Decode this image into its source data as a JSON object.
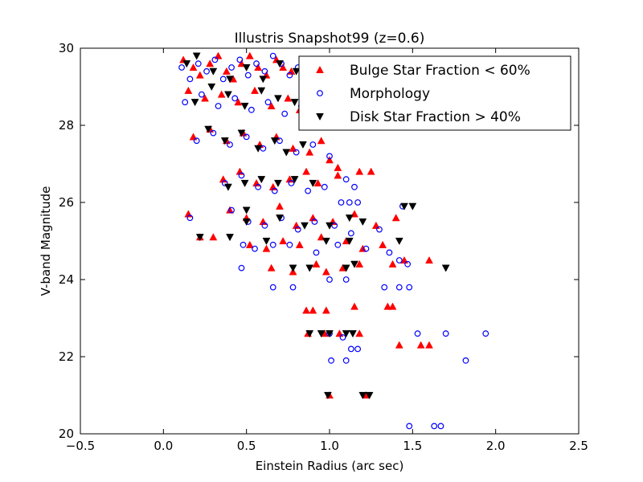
{
  "chart_data": {
    "type": "scatter",
    "title": "Illustris Snapshot99 (z=0.6)",
    "xlabel": "Einstein Radius (arc sec)",
    "ylabel": "V-band Magnitude",
    "xlim": [
      -0.5,
      2.5
    ],
    "ylim": [
      20,
      30
    ],
    "xticks": [
      -0.5,
      0.0,
      0.5,
      1.0,
      1.5,
      2.0,
      2.5
    ],
    "xtick_labels": [
      "−0.5",
      "0.0",
      "0.5",
      "1.0",
      "1.5",
      "2.0",
      "2.5"
    ],
    "yticks": [
      20,
      22,
      24,
      26,
      28,
      30
    ],
    "ytick_labels": [
      "20",
      "22",
      "24",
      "26",
      "28",
      "30"
    ],
    "grid": false,
    "legend_position": "top-right",
    "series": [
      {
        "name": "Bulge Star Fraction < 60%",
        "marker": "triangle-up",
        "color": "#ff0000",
        "points": [
          [
            0.12,
            29.7
          ],
          [
            0.18,
            29.5
          ],
          [
            0.22,
            29.3
          ],
          [
            0.28,
            29.6
          ],
          [
            0.33,
            29.8
          ],
          [
            0.38,
            29.4
          ],
          [
            0.42,
            29.2
          ],
          [
            0.47,
            29.6
          ],
          [
            0.52,
            29.8
          ],
          [
            0.57,
            29.5
          ],
          [
            0.62,
            29.3
          ],
          [
            0.68,
            29.7
          ],
          [
            0.72,
            29.5
          ],
          [
            0.77,
            29.4
          ],
          [
            0.85,
            29.6
          ],
          [
            0.15,
            28.9
          ],
          [
            0.25,
            28.7
          ],
          [
            0.35,
            28.8
          ],
          [
            0.45,
            28.6
          ],
          [
            0.55,
            28.9
          ],
          [
            0.65,
            28.5
          ],
          [
            0.75,
            28.7
          ],
          [
            0.82,
            28.4
          ],
          [
            0.9,
            28.6
          ],
          [
            0.18,
            27.7
          ],
          [
            0.28,
            27.9
          ],
          [
            0.38,
            27.6
          ],
          [
            0.48,
            27.8
          ],
          [
            0.58,
            27.5
          ],
          [
            0.68,
            27.7
          ],
          [
            0.78,
            27.4
          ],
          [
            0.88,
            27.3
          ],
          [
            0.95,
            27.6
          ],
          [
            1.0,
            27.1
          ],
          [
            1.05,
            26.9
          ],
          [
            0.36,
            26.6
          ],
          [
            0.46,
            26.8
          ],
          [
            0.56,
            26.5
          ],
          [
            0.66,
            26.4
          ],
          [
            0.76,
            26.6
          ],
          [
            0.86,
            26.8
          ],
          [
            0.93,
            26.5
          ],
          [
            1.05,
            26.7
          ],
          [
            1.18,
            26.8
          ],
          [
            1.25,
            26.8
          ],
          [
            0.15,
            25.7
          ],
          [
            0.4,
            25.8
          ],
          [
            0.5,
            25.6
          ],
          [
            0.6,
            25.5
          ],
          [
            0.7,
            25.9
          ],
          [
            0.8,
            25.4
          ],
          [
            0.9,
            25.6
          ],
          [
            1.02,
            25.5
          ],
          [
            1.15,
            25.7
          ],
          [
            1.28,
            25.4
          ],
          [
            1.4,
            25.6
          ],
          [
            0.22,
            25.1
          ],
          [
            0.3,
            25.1
          ],
          [
            0.52,
            24.9
          ],
          [
            0.62,
            24.8
          ],
          [
            0.72,
            25.0
          ],
          [
            0.82,
            24.9
          ],
          [
            0.95,
            25.1
          ],
          [
            1.1,
            25.0
          ],
          [
            1.2,
            24.8
          ],
          [
            1.32,
            24.9
          ],
          [
            0.65,
            24.3
          ],
          [
            0.78,
            24.2
          ],
          [
            0.92,
            24.4
          ],
          [
            0.98,
            24.2
          ],
          [
            1.08,
            24.3
          ],
          [
            1.18,
            24.4
          ],
          [
            1.38,
            24.4
          ],
          [
            1.45,
            24.5
          ],
          [
            1.6,
            24.5
          ],
          [
            0.86,
            23.2
          ],
          [
            0.9,
            23.2
          ],
          [
            0.98,
            23.2
          ],
          [
            1.15,
            23.3
          ],
          [
            1.35,
            23.3
          ],
          [
            1.38,
            23.3
          ],
          [
            0.87,
            22.6
          ],
          [
            0.97,
            22.6
          ],
          [
            1.06,
            22.6
          ],
          [
            1.18,
            22.6
          ],
          [
            1.42,
            22.3
          ],
          [
            1.55,
            22.3
          ],
          [
            1.6,
            22.3
          ],
          [
            1.0,
            21.0
          ],
          [
            1.22,
            21.0
          ]
        ]
      },
      {
        "name": "Morphology",
        "marker": "circle-open",
        "color": "#0000ff",
        "points": [
          [
            0.11,
            29.5
          ],
          [
            0.16,
            29.2
          ],
          [
            0.21,
            29.6
          ],
          [
            0.26,
            29.4
          ],
          [
            0.31,
            29.7
          ],
          [
            0.36,
            29.2
          ],
          [
            0.41,
            29.5
          ],
          [
            0.46,
            29.7
          ],
          [
            0.51,
            29.3
          ],
          [
            0.56,
            29.6
          ],
          [
            0.61,
            29.4
          ],
          [
            0.66,
            29.8
          ],
          [
            0.71,
            29.6
          ],
          [
            0.76,
            29.3
          ],
          [
            0.81,
            29.5
          ],
          [
            0.13,
            28.6
          ],
          [
            0.23,
            28.8
          ],
          [
            0.33,
            28.5
          ],
          [
            0.43,
            28.7
          ],
          [
            0.53,
            28.4
          ],
          [
            0.63,
            28.6
          ],
          [
            0.73,
            28.3
          ],
          [
            0.83,
            28.5
          ],
          [
            0.93,
            28.2
          ],
          [
            0.2,
            27.6
          ],
          [
            0.3,
            27.8
          ],
          [
            0.4,
            27.5
          ],
          [
            0.5,
            27.7
          ],
          [
            0.6,
            27.4
          ],
          [
            0.7,
            27.6
          ],
          [
            0.8,
            27.3
          ],
          [
            0.9,
            27.5
          ],
          [
            1.0,
            27.2
          ],
          [
            1.1,
            26.6
          ],
          [
            1.15,
            26.4
          ],
          [
            0.37,
            26.5
          ],
          [
            0.47,
            26.7
          ],
          [
            0.57,
            26.4
          ],
          [
            0.67,
            26.3
          ],
          [
            0.77,
            26.5
          ],
          [
            0.87,
            26.3
          ],
          [
            0.97,
            26.4
          ],
          [
            1.07,
            26.0
          ],
          [
            1.12,
            26.0
          ],
          [
            1.17,
            26.0
          ],
          [
            0.16,
            25.6
          ],
          [
            0.41,
            25.8
          ],
          [
            0.51,
            25.5
          ],
          [
            0.61,
            25.4
          ],
          [
            0.71,
            25.6
          ],
          [
            0.81,
            25.3
          ],
          [
            0.91,
            25.5
          ],
          [
            1.03,
            25.4
          ],
          [
            1.13,
            25.2
          ],
          [
            1.3,
            25.3
          ],
          [
            1.44,
            25.9
          ],
          [
            0.48,
            24.9
          ],
          [
            0.55,
            24.8
          ],
          [
            0.66,
            24.9
          ],
          [
            0.76,
            24.9
          ],
          [
            0.92,
            24.7
          ],
          [
            1.05,
            24.9
          ],
          [
            1.22,
            24.8
          ],
          [
            1.36,
            24.7
          ],
          [
            1.42,
            24.5
          ],
          [
            1.47,
            24.4
          ],
          [
            0.47,
            24.3
          ],
          [
            0.66,
            23.8
          ],
          [
            0.78,
            23.8
          ],
          [
            1.0,
            24.0
          ],
          [
            1.1,
            24.0
          ],
          [
            1.33,
            23.8
          ],
          [
            1.42,
            23.8
          ],
          [
            1.48,
            23.8
          ],
          [
            1.0,
            22.6
          ],
          [
            1.08,
            22.5
          ],
          [
            1.13,
            22.2
          ],
          [
            1.17,
            22.2
          ],
          [
            1.53,
            22.6
          ],
          [
            1.7,
            22.6
          ],
          [
            1.94,
            22.6
          ],
          [
            1.01,
            21.9
          ],
          [
            1.1,
            21.9
          ],
          [
            1.82,
            21.9
          ],
          [
            1.48,
            20.2
          ],
          [
            1.63,
            20.2
          ],
          [
            1.67,
            20.2
          ]
        ]
      },
      {
        "name": "Disk Star Fraction > 40%",
        "marker": "triangle-down",
        "color": "#000000",
        "points": [
          [
            0.14,
            29.6
          ],
          [
            0.2,
            29.8
          ],
          [
            0.3,
            29.4
          ],
          [
            0.4,
            29.2
          ],
          [
            0.5,
            29.5
          ],
          [
            0.6,
            29.2
          ],
          [
            0.7,
            29.6
          ],
          [
            0.8,
            29.4
          ],
          [
            0.19,
            28.6
          ],
          [
            0.29,
            29.0
          ],
          [
            0.39,
            28.8
          ],
          [
            0.49,
            28.5
          ],
          [
            0.59,
            28.9
          ],
          [
            0.69,
            28.7
          ],
          [
            0.79,
            28.6
          ],
          [
            0.89,
            28.7
          ],
          [
            0.27,
            27.9
          ],
          [
            0.37,
            27.6
          ],
          [
            0.47,
            27.8
          ],
          [
            0.57,
            27.4
          ],
          [
            0.67,
            27.6
          ],
          [
            0.74,
            27.3
          ],
          [
            0.84,
            27.5
          ],
          [
            0.39,
            26.4
          ],
          [
            0.49,
            26.5
          ],
          [
            0.59,
            26.6
          ],
          [
            0.69,
            26.5
          ],
          [
            0.79,
            26.6
          ],
          [
            0.9,
            26.5
          ],
          [
            0.5,
            25.8
          ],
          [
            0.7,
            25.6
          ],
          [
            0.85,
            25.4
          ],
          [
            1.0,
            25.4
          ],
          [
            1.12,
            25.6
          ],
          [
            1.2,
            25.5
          ],
          [
            1.45,
            25.9
          ],
          [
            1.5,
            25.9
          ],
          [
            0.22,
            25.1
          ],
          [
            0.4,
            25.1
          ],
          [
            0.5,
            25.5
          ],
          [
            0.62,
            25.0
          ],
          [
            0.98,
            25.0
          ],
          [
            1.12,
            25.0
          ],
          [
            1.42,
            25.0
          ],
          [
            0.78,
            24.3
          ],
          [
            0.88,
            24.3
          ],
          [
            1.1,
            24.3
          ],
          [
            1.15,
            24.4
          ],
          [
            1.7,
            24.3
          ],
          [
            0.88,
            22.6
          ],
          [
            0.95,
            22.6
          ],
          [
            1.0,
            22.6
          ],
          [
            1.1,
            22.6
          ],
          [
            1.14,
            22.6
          ],
          [
            0.99,
            21.0
          ],
          [
            1.2,
            21.0
          ],
          [
            1.24,
            21.0
          ]
        ]
      }
    ]
  }
}
